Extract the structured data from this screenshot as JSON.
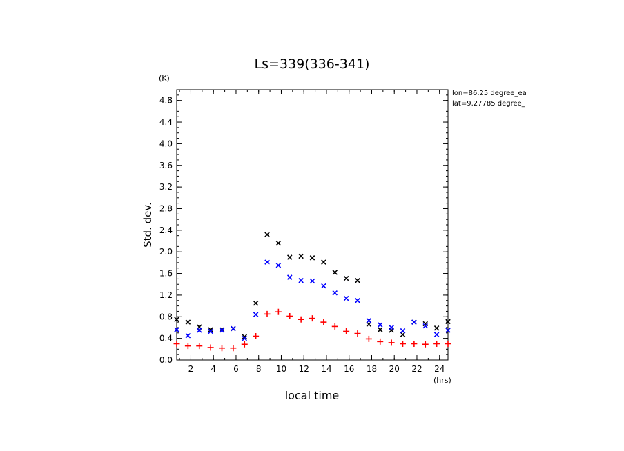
{
  "chart_data": {
    "type": "scatter",
    "title": "Ls=339(336-341)",
    "xlabel": "local time",
    "ylabel": "Std. dev.",
    "y_unit": "(K)",
    "x_unit": "(hrs)",
    "xlim": [
      0.75,
      24.75
    ],
    "ylim": [
      0.0,
      5.0
    ],
    "x_ticks": [
      2,
      4,
      6,
      8,
      10,
      12,
      14,
      16,
      18,
      20,
      22,
      24
    ],
    "y_ticks": [
      0.0,
      0.4,
      0.8,
      1.2,
      1.6,
      2.0,
      2.4,
      2.8,
      3.2,
      3.6,
      4.0,
      4.4,
      4.8
    ],
    "x_tick_labels": [
      "2",
      "4",
      "6",
      "8",
      "10",
      "12",
      "14",
      "16",
      "18",
      "20",
      "22",
      "24"
    ],
    "y_tick_labels": [
      "0.0",
      "0.4",
      "0.8",
      "1.2",
      "1.6",
      "2.0",
      "2.4",
      "2.8",
      "3.2",
      "3.6",
      "4.0",
      "4.4",
      "4.8"
    ],
    "annotations": [
      "lon=86.25 degree_ea",
      "lat=9.27785 degree_"
    ],
    "grid": false,
    "x": [
      0.75,
      1.75,
      2.75,
      3.75,
      4.75,
      5.75,
      6.75,
      7.75,
      8.75,
      9.75,
      10.75,
      11.75,
      12.75,
      13.75,
      14.75,
      15.75,
      16.75,
      17.75,
      18.75,
      19.75,
      20.75,
      21.75,
      22.75,
      23.75,
      24.75
    ],
    "series": [
      {
        "color": "#000000",
        "marker": "x",
        "values": [
          0.75,
          0.7,
          0.61,
          0.56,
          0.56,
          0.58,
          0.43,
          1.05,
          2.32,
          2.16,
          1.9,
          1.92,
          1.89,
          1.81,
          1.62,
          1.51,
          1.47,
          0.66,
          0.56,
          0.55,
          0.47,
          0.7,
          0.67,
          0.59,
          0.71
        ]
      },
      {
        "color": "#0000ff",
        "marker": "x",
        "values": [
          0.56,
          0.45,
          0.55,
          0.53,
          0.55,
          0.58,
          0.4,
          0.84,
          1.81,
          1.75,
          1.53,
          1.47,
          1.46,
          1.37,
          1.24,
          1.14,
          1.1,
          0.73,
          0.65,
          0.6,
          0.54,
          0.7,
          0.63,
          0.47,
          0.55
        ]
      },
      {
        "color": "#ff0000",
        "marker": "+",
        "values": [
          0.3,
          0.26,
          0.26,
          0.23,
          0.22,
          0.22,
          0.29,
          0.44,
          0.85,
          0.89,
          0.81,
          0.75,
          0.77,
          0.7,
          0.62,
          0.53,
          0.49,
          0.39,
          0.34,
          0.32,
          0.3,
          0.3,
          0.29,
          0.3,
          0.3
        ]
      }
    ]
  }
}
